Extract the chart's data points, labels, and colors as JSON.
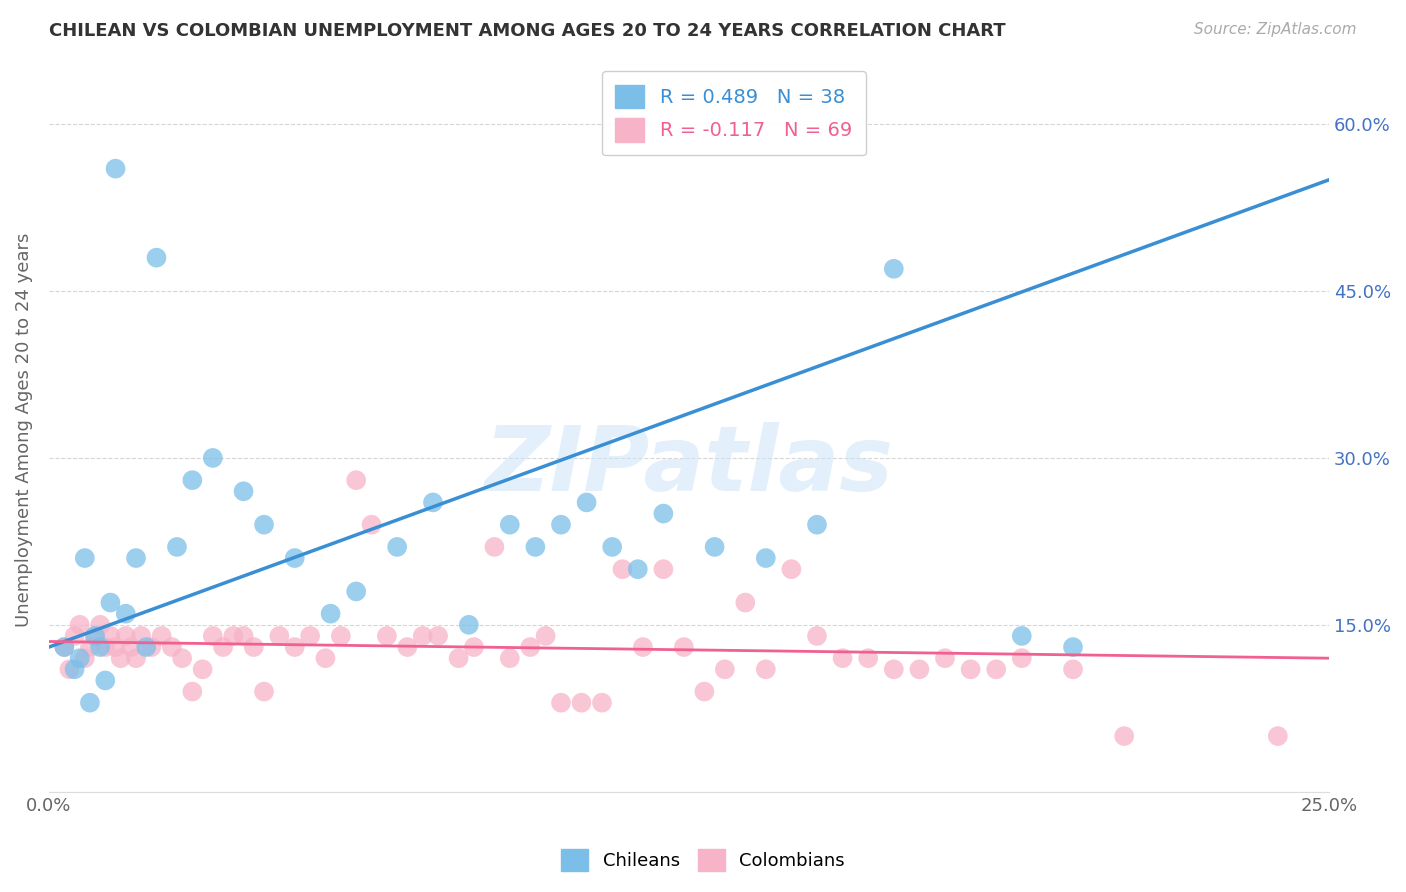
{
  "title": "CHILEAN VS COLOMBIAN UNEMPLOYMENT AMONG AGES 20 TO 24 YEARS CORRELATION CHART",
  "source": "Source: ZipAtlas.com",
  "ylabel": "Unemployment Among Ages 20 to 24 years",
  "xlim": [
    0.0,
    0.25
  ],
  "ylim": [
    0.0,
    0.65
  ],
  "xticks": [
    0.0,
    0.05,
    0.1,
    0.15,
    0.2,
    0.25
  ],
  "xticklabels": [
    "0.0%",
    "",
    "",
    "",
    "",
    "25.0%"
  ],
  "yticks": [
    0.0,
    0.15,
    0.3,
    0.45,
    0.6
  ],
  "yticklabels_right": [
    "",
    "15.0%",
    "30.0%",
    "45.0%",
    "60.0%"
  ],
  "chilean_color": "#7bbfe8",
  "colombian_color": "#f7b3c8",
  "chilean_line_color": "#3a8fd4",
  "colombian_line_color": "#f06090",
  "R_chilean": 0.489,
  "N_chilean": 38,
  "R_colombian": -0.117,
  "N_colombian": 69,
  "watermark": "ZIPatlas",
  "background_color": "#ffffff",
  "grid_color": "#cccccc",
  "chilean_x": [
    0.003,
    0.005,
    0.006,
    0.007,
    0.008,
    0.009,
    0.01,
    0.011,
    0.012,
    0.013,
    0.015,
    0.017,
    0.019,
    0.021,
    0.025,
    0.028,
    0.032,
    0.038,
    0.042,
    0.048,
    0.055,
    0.06,
    0.068,
    0.075,
    0.082,
    0.09,
    0.095,
    0.1,
    0.105,
    0.11,
    0.115,
    0.12,
    0.13,
    0.14,
    0.15,
    0.165,
    0.19,
    0.2
  ],
  "chilean_y": [
    0.13,
    0.11,
    0.12,
    0.21,
    0.08,
    0.14,
    0.13,
    0.1,
    0.17,
    0.56,
    0.16,
    0.21,
    0.13,
    0.48,
    0.22,
    0.28,
    0.3,
    0.27,
    0.24,
    0.21,
    0.16,
    0.18,
    0.22,
    0.26,
    0.15,
    0.24,
    0.22,
    0.24,
    0.26,
    0.22,
    0.2,
    0.25,
    0.22,
    0.21,
    0.24,
    0.47,
    0.14,
    0.13
  ],
  "colombian_x": [
    0.003,
    0.004,
    0.005,
    0.006,
    0.007,
    0.008,
    0.009,
    0.01,
    0.011,
    0.012,
    0.013,
    0.014,
    0.015,
    0.016,
    0.017,
    0.018,
    0.02,
    0.022,
    0.024,
    0.026,
    0.028,
    0.03,
    0.032,
    0.034,
    0.036,
    0.038,
    0.04,
    0.042,
    0.045,
    0.048,
    0.051,
    0.054,
    0.057,
    0.06,
    0.063,
    0.066,
    0.07,
    0.073,
    0.076,
    0.08,
    0.083,
    0.087,
    0.09,
    0.094,
    0.097,
    0.1,
    0.104,
    0.108,
    0.112,
    0.116,
    0.12,
    0.124,
    0.128,
    0.132,
    0.136,
    0.14,
    0.145,
    0.15,
    0.155,
    0.16,
    0.165,
    0.17,
    0.175,
    0.18,
    0.185,
    0.19,
    0.2,
    0.21,
    0.24
  ],
  "colombian_y": [
    0.13,
    0.11,
    0.14,
    0.15,
    0.12,
    0.13,
    0.14,
    0.15,
    0.13,
    0.14,
    0.13,
    0.12,
    0.14,
    0.13,
    0.12,
    0.14,
    0.13,
    0.14,
    0.13,
    0.12,
    0.09,
    0.11,
    0.14,
    0.13,
    0.14,
    0.14,
    0.13,
    0.09,
    0.14,
    0.13,
    0.14,
    0.12,
    0.14,
    0.28,
    0.24,
    0.14,
    0.13,
    0.14,
    0.14,
    0.12,
    0.13,
    0.22,
    0.12,
    0.13,
    0.14,
    0.08,
    0.08,
    0.08,
    0.2,
    0.13,
    0.2,
    0.13,
    0.09,
    0.11,
    0.17,
    0.11,
    0.2,
    0.14,
    0.12,
    0.12,
    0.11,
    0.11,
    0.12,
    0.11,
    0.11,
    0.12,
    0.11,
    0.05,
    0.05
  ]
}
